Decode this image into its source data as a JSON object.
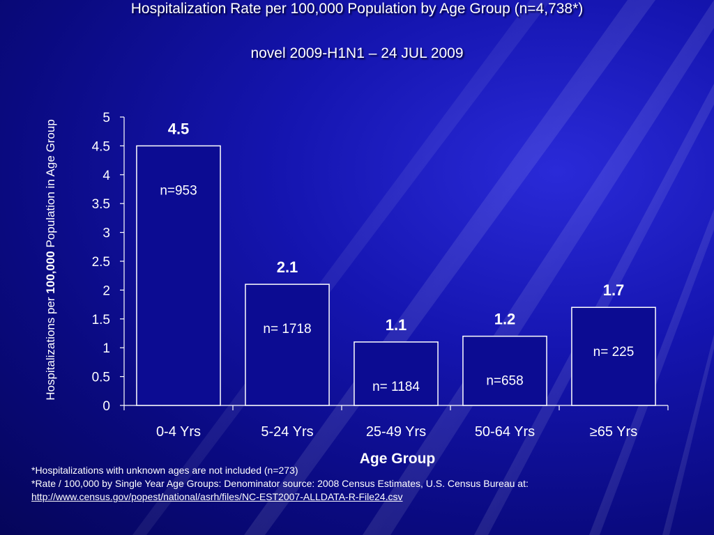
{
  "title": "Hospitalization Rate per 100,000 Population by Age Group (n=4,738*)",
  "subtitle": "novel 2009-H1N1 – 24 JUL 2009",
  "footnotes": {
    "note_1": "*Hospitalizations with unknown ages are not included (n=273)",
    "note_2": "*Rate / 100,000 by Single Year Age Groups: Denominator source: 2008 Census Estimates, U.S. Census Bureau at:",
    "link": "http://www.census.gov/popest/national/asrh/files/NC-EST2007-ALLDATA-R-File24.csv"
  },
  "colors": {
    "background": "#1515b0",
    "bar_fill": "#0c0c92",
    "bar_outline": "#ffffff",
    "text": "#ffffff"
  },
  "chart_data": {
    "type": "bar",
    "categories": [
      "0-4 Yrs",
      "5-24 Yrs",
      "25-49 Yrs",
      "50-64 Yrs",
      "≥65 Yrs"
    ],
    "values": [
      4.5,
      2.1,
      1.1,
      1.2,
      1.7
    ],
    "data_labels": [
      "4.5",
      "2.1",
      "1.1",
      "1.2",
      "1.7"
    ],
    "n_labels": [
      "n=953",
      "n= 1718",
      "n= 1184",
      "n=658",
      "n= 225"
    ],
    "xlabel": "Age Group",
    "ylabel_part_1": "Hospitalizations per ",
    "ylabel_part_2": "100,000",
    "ylabel_part_3": " Population in Age Group",
    "ylim": [
      0,
      5
    ],
    "yticks": [
      0,
      0.5,
      1,
      1.5,
      2,
      2.5,
      3,
      3.5,
      4,
      4.5,
      5
    ],
    "ytick_labels": [
      "0",
      "0.5",
      "1",
      "1.5",
      "2",
      "2.5",
      "3",
      "3.5",
      "4",
      "4.5",
      "5"
    ],
    "grid": false,
    "legend": "none"
  }
}
